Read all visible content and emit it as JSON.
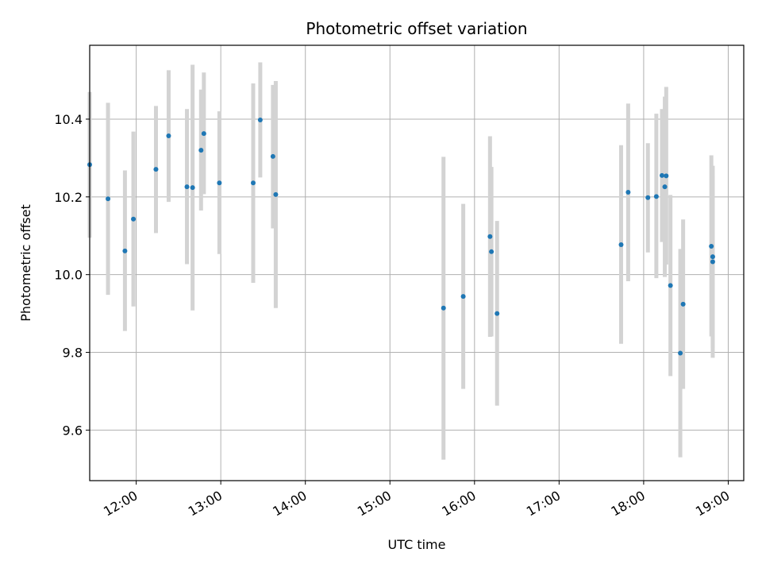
{
  "chart_data": {
    "type": "scatter",
    "title": "Photometric offset variation",
    "xlabel": "UTC time",
    "ylabel": "Photometric offset",
    "grid": true,
    "xlim": [
      "11:27",
      "19:11"
    ],
    "ylim": [
      9.47,
      10.59
    ],
    "x_ticks": [
      "12:00",
      "13:00",
      "14:00",
      "15:00",
      "16:00",
      "17:00",
      "18:00",
      "19:00"
    ],
    "y_ticks": [
      "9.6",
      "9.8",
      "10.0",
      "10.2",
      "10.4"
    ],
    "point_color": "#1f77b4",
    "errorbar_color": "#d3d3d3",
    "points": [
      {
        "x": "11:27",
        "y": 10.283,
        "ylow": 10.095,
        "yhigh": 10.47
      },
      {
        "x": "11:40",
        "y": 10.195,
        "ylow": 9.948,
        "yhigh": 10.442
      },
      {
        "x": "11:52",
        "y": 10.061,
        "ylow": 9.855,
        "yhigh": 10.268
      },
      {
        "x": "11:58",
        "y": 10.143,
        "ylow": 9.918,
        "yhigh": 10.368
      },
      {
        "x": "12:14",
        "y": 10.271,
        "ylow": 10.107,
        "yhigh": 10.434
      },
      {
        "x": "12:23",
        "y": 10.357,
        "ylow": 10.187,
        "yhigh": 10.526
      },
      {
        "x": "12:36",
        "y": 10.226,
        "ylow": 10.027,
        "yhigh": 10.426
      },
      {
        "x": "12:40",
        "y": 10.224,
        "ylow": 9.908,
        "yhigh": 10.54
      },
      {
        "x": "12:46",
        "y": 10.32,
        "ylow": 10.165,
        "yhigh": 10.476
      },
      {
        "x": "12:48",
        "y": 10.363,
        "ylow": 10.207,
        "yhigh": 10.52
      },
      {
        "x": "12:59",
        "y": 10.236,
        "ylow": 10.053,
        "yhigh": 10.42
      },
      {
        "x": "13:23",
        "y": 10.236,
        "ylow": 9.979,
        "yhigh": 10.492
      },
      {
        "x": "13:28",
        "y": 10.398,
        "ylow": 10.25,
        "yhigh": 10.546
      },
      {
        "x": "13:37",
        "y": 10.304,
        "ylow": 10.119,
        "yhigh": 10.488
      },
      {
        "x": "13:39",
        "y": 10.206,
        "ylow": 9.914,
        "yhigh": 10.498
      },
      {
        "x": "15:38",
        "y": 9.914,
        "ylow": 9.524,
        "yhigh": 10.303
      },
      {
        "x": "15:52",
        "y": 9.944,
        "ylow": 9.706,
        "yhigh": 10.182
      },
      {
        "x": "16:11",
        "y": 10.098,
        "ylow": 9.84,
        "yhigh": 10.356
      },
      {
        "x": "16:12",
        "y": 10.059,
        "ylow": 9.841,
        "yhigh": 10.277
      },
      {
        "x": "16:16",
        "y": 9.9,
        "ylow": 9.663,
        "yhigh": 10.138
      },
      {
        "x": "17:44",
        "y": 10.077,
        "ylow": 9.822,
        "yhigh": 10.333
      },
      {
        "x": "17:49",
        "y": 10.212,
        "ylow": 9.983,
        "yhigh": 10.44
      },
      {
        "x": "18:03",
        "y": 10.198,
        "ylow": 10.057,
        "yhigh": 10.338
      },
      {
        "x": "18:09",
        "y": 10.201,
        "ylow": 9.991,
        "yhigh": 10.414
      },
      {
        "x": "18:13",
        "y": 10.255,
        "ylow": 10.084,
        "yhigh": 10.426
      },
      {
        "x": "18:15",
        "y": 10.226,
        "ylow": 9.994,
        "yhigh": 10.458
      },
      {
        "x": "18:16",
        "y": 10.254,
        "ylow": 10.026,
        "yhigh": 10.483
      },
      {
        "x": "18:19",
        "y": 9.972,
        "ylow": 9.739,
        "yhigh": 10.205
      },
      {
        "x": "18:26",
        "y": 9.798,
        "ylow": 9.53,
        "yhigh": 10.066
      },
      {
        "x": "18:28",
        "y": 9.924,
        "ylow": 9.706,
        "yhigh": 10.142
      },
      {
        "x": "18:48",
        "y": 10.073,
        "ylow": 9.841,
        "yhigh": 10.307
      },
      {
        "x": "18:49",
        "y": 10.046,
        "ylow": 9.786,
        "yhigh": 10.28
      },
      {
        "x": "18:49",
        "y": 10.033,
        "ylow": 9.812,
        "yhigh": 10.254
      }
    ]
  }
}
